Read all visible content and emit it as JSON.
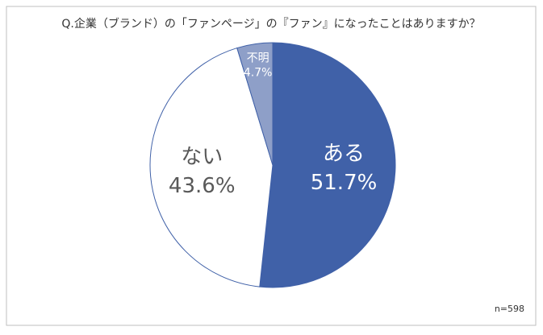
{
  "chart_data": {
    "type": "pie",
    "title": "Q.企業（ブランド）の「ファンページ」の『ファン』になったことはありますか？",
    "categories": [
      "ある",
      "ない",
      "不明"
    ],
    "values": [
      51.7,
      43.6,
      4.7
    ],
    "value_labels": [
      "51.7%",
      "43.6%",
      "4.7%"
    ],
    "colors": [
      "#4061a8",
      "#ffffff",
      "#8e9fc8"
    ],
    "label_colors": [
      "#ffffff",
      "#595959",
      "#ffffff"
    ],
    "note": "n=598"
  }
}
